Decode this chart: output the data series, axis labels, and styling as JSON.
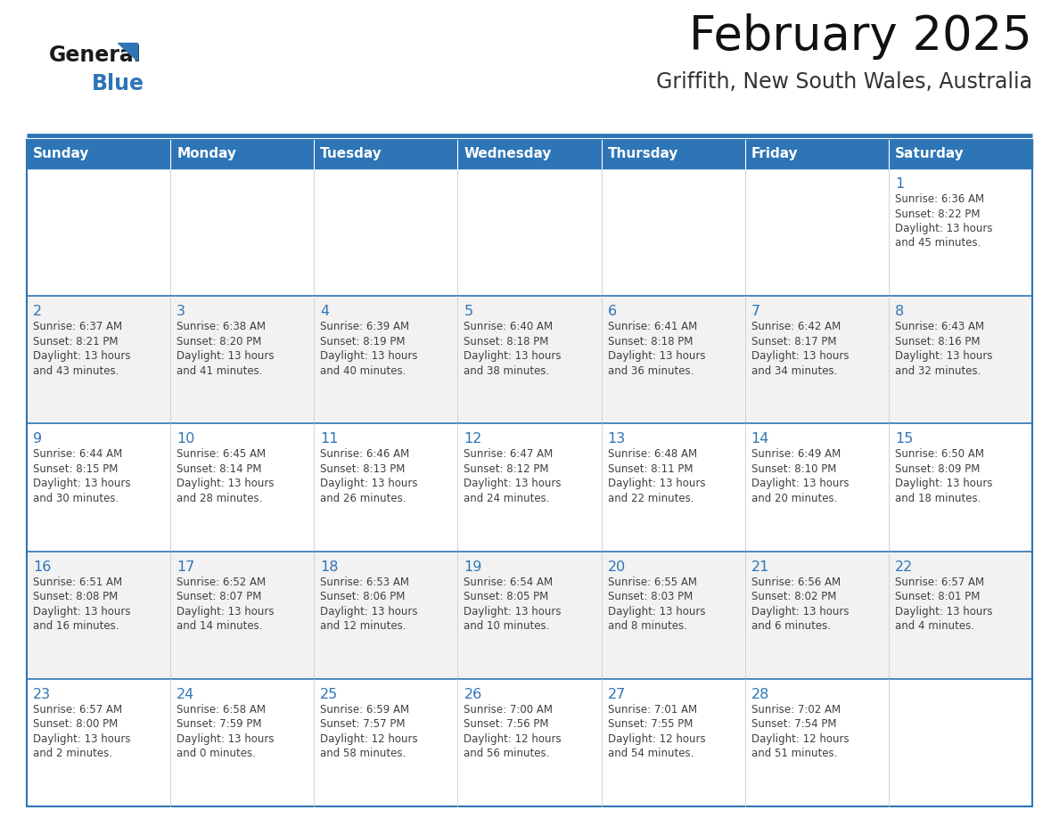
{
  "title": "February 2025",
  "subtitle": "Griffith, New South Wales, Australia",
  "header_bg": "#2E75B6",
  "header_text_color": "#FFFFFF",
  "cell_bg_white": "#FFFFFF",
  "cell_bg_gray": "#F2F2F2",
  "border_color": "#2E75B6",
  "day_number_color": "#2E75B6",
  "text_color": "#404040",
  "days_of_week": [
    "Sunday",
    "Monday",
    "Tuesday",
    "Wednesday",
    "Thursday",
    "Friday",
    "Saturday"
  ],
  "weeks": [
    [
      {
        "day": null
      },
      {
        "day": null
      },
      {
        "day": null
      },
      {
        "day": null
      },
      {
        "day": null
      },
      {
        "day": null
      },
      {
        "day": 1,
        "sunrise": "6:36 AM",
        "sunset": "8:22 PM",
        "daylight": "13 hours and 45 minutes."
      }
    ],
    [
      {
        "day": 2,
        "sunrise": "6:37 AM",
        "sunset": "8:21 PM",
        "daylight": "13 hours and 43 minutes."
      },
      {
        "day": 3,
        "sunrise": "6:38 AM",
        "sunset": "8:20 PM",
        "daylight": "13 hours and 41 minutes."
      },
      {
        "day": 4,
        "sunrise": "6:39 AM",
        "sunset": "8:19 PM",
        "daylight": "13 hours and 40 minutes."
      },
      {
        "day": 5,
        "sunrise": "6:40 AM",
        "sunset": "8:18 PM",
        "daylight": "13 hours and 38 minutes."
      },
      {
        "day": 6,
        "sunrise": "6:41 AM",
        "sunset": "8:18 PM",
        "daylight": "13 hours and 36 minutes."
      },
      {
        "day": 7,
        "sunrise": "6:42 AM",
        "sunset": "8:17 PM",
        "daylight": "13 hours and 34 minutes."
      },
      {
        "day": 8,
        "sunrise": "6:43 AM",
        "sunset": "8:16 PM",
        "daylight": "13 hours and 32 minutes."
      }
    ],
    [
      {
        "day": 9,
        "sunrise": "6:44 AM",
        "sunset": "8:15 PM",
        "daylight": "13 hours and 30 minutes."
      },
      {
        "day": 10,
        "sunrise": "6:45 AM",
        "sunset": "8:14 PM",
        "daylight": "13 hours and 28 minutes."
      },
      {
        "day": 11,
        "sunrise": "6:46 AM",
        "sunset": "8:13 PM",
        "daylight": "13 hours and 26 minutes."
      },
      {
        "day": 12,
        "sunrise": "6:47 AM",
        "sunset": "8:12 PM",
        "daylight": "13 hours and 24 minutes."
      },
      {
        "day": 13,
        "sunrise": "6:48 AM",
        "sunset": "8:11 PM",
        "daylight": "13 hours and 22 minutes."
      },
      {
        "day": 14,
        "sunrise": "6:49 AM",
        "sunset": "8:10 PM",
        "daylight": "13 hours and 20 minutes."
      },
      {
        "day": 15,
        "sunrise": "6:50 AM",
        "sunset": "8:09 PM",
        "daylight": "13 hours and 18 minutes."
      }
    ],
    [
      {
        "day": 16,
        "sunrise": "6:51 AM",
        "sunset": "8:08 PM",
        "daylight": "13 hours and 16 minutes."
      },
      {
        "day": 17,
        "sunrise": "6:52 AM",
        "sunset": "8:07 PM",
        "daylight": "13 hours and 14 minutes."
      },
      {
        "day": 18,
        "sunrise": "6:53 AM",
        "sunset": "8:06 PM",
        "daylight": "13 hours and 12 minutes."
      },
      {
        "day": 19,
        "sunrise": "6:54 AM",
        "sunset": "8:05 PM",
        "daylight": "13 hours and 10 minutes."
      },
      {
        "day": 20,
        "sunrise": "6:55 AM",
        "sunset": "8:03 PM",
        "daylight": "13 hours and 8 minutes."
      },
      {
        "day": 21,
        "sunrise": "6:56 AM",
        "sunset": "8:02 PM",
        "daylight": "13 hours and 6 minutes."
      },
      {
        "day": 22,
        "sunrise": "6:57 AM",
        "sunset": "8:01 PM",
        "daylight": "13 hours and 4 minutes."
      }
    ],
    [
      {
        "day": 23,
        "sunrise": "6:57 AM",
        "sunset": "8:00 PM",
        "daylight": "13 hours and 2 minutes."
      },
      {
        "day": 24,
        "sunrise": "6:58 AM",
        "sunset": "7:59 PM",
        "daylight": "13 hours and 0 minutes."
      },
      {
        "day": 25,
        "sunrise": "6:59 AM",
        "sunset": "7:57 PM",
        "daylight": "12 hours and 58 minutes."
      },
      {
        "day": 26,
        "sunrise": "7:00 AM",
        "sunset": "7:56 PM",
        "daylight": "12 hours and 56 minutes."
      },
      {
        "day": 27,
        "sunrise": "7:01 AM",
        "sunset": "7:55 PM",
        "daylight": "12 hours and 54 minutes."
      },
      {
        "day": 28,
        "sunrise": "7:02 AM",
        "sunset": "7:54 PM",
        "daylight": "12 hours and 51 minutes."
      },
      {
        "day": null
      }
    ]
  ]
}
